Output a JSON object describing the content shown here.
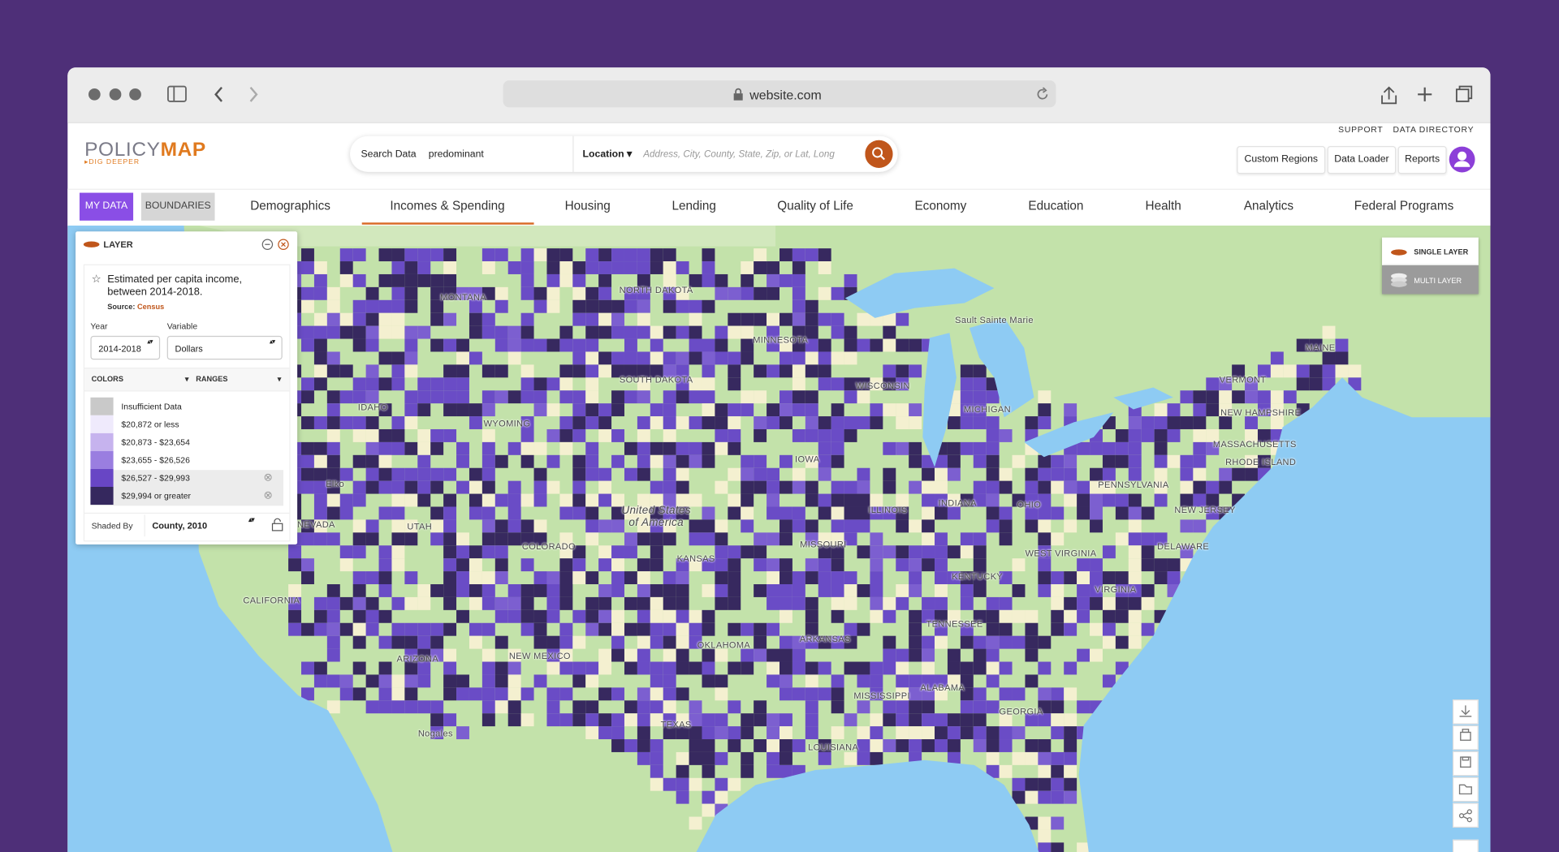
{
  "browser": {
    "url": "website.com"
  },
  "header": {
    "logo_part1": "POLICY",
    "logo_part2": "MAP",
    "tagline": "DIG DEEPER",
    "search_label": "Search Data",
    "search_value": "predominant",
    "location_label": "Location",
    "location_placeholder": "Address, City, County, State, Zip, or Lat, Long",
    "links": [
      "SUPPORT",
      "DATA DIRECTORY"
    ],
    "buttons": [
      "Custom Regions",
      "Data Loader",
      "Reports"
    ]
  },
  "nav": {
    "my_data": "MY DATA",
    "boundaries": "BOUNDARIES",
    "tabs": [
      "Demographics",
      "Incomes & Spending",
      "Housing",
      "Lending",
      "Quality of Life",
      "Economy",
      "Education",
      "Health",
      "Analytics",
      "Federal Programs"
    ]
  },
  "panel": {
    "title": "LAYER",
    "layer_name": "Estimated per capita income, between 2014-2018.",
    "source_label": "Source:",
    "source": "Census",
    "year_label": "Year",
    "year": "2014-2018",
    "variable_label": "Variable",
    "variable": "Dollars",
    "colors": "COLORS",
    "ranges": "RANGES",
    "legend": [
      {
        "label": "Insufficient Data",
        "color": "#c9c9c9"
      },
      {
        "label": "$20,872 or less",
        "color": "#efeafc"
      },
      {
        "label": "$20,873 - $23,654",
        "color": "#c6b3ee"
      },
      {
        "label": "$23,655 - $26,526",
        "color": "#9a7ee0"
      },
      {
        "label": "$26,527 - $29,993",
        "color": "#6846c5"
      },
      {
        "label": "$29,994 or greater",
        "color": "#35285e"
      }
    ],
    "shaded_by_label": "Shaded By",
    "shaded_by": "County, 2010"
  },
  "layer_toggle": [
    "SINGLE LAYER",
    "MULTI LAYER"
  ],
  "map_labels": [
    "MONTANA",
    "NORTH DAKOTA",
    "SOUTH DAKOTA",
    "MINNESOTA",
    "WISCONSIN",
    "MICHIGAN",
    "Sault Sainte Marie",
    "WYOMING",
    "IDAHO",
    "NEVADA",
    "UTAH",
    "COLORADO",
    "Elko",
    "United States of America",
    "IOWA",
    "KANSAS",
    "MISSOURI",
    "ILLINOIS",
    "INDIANA",
    "OHIO",
    "PENNSYLVANIA",
    "VERMONT",
    "MAINE",
    "NEW HAMPSHIRE",
    "MASSACHUSETTS",
    "RHODE ISLAND",
    "NEW JERSEY",
    "DELAWARE",
    "WEST VIRGINIA",
    "VIRGINIA",
    "KENTUCKY",
    "TENNESSEE",
    "CALIFORNIA",
    "ARIZONA",
    "NEW MEXICO",
    "OKLAHOMA",
    "ARKANSAS",
    "TEXAS",
    "MISSISSIPPI",
    "ALABAMA",
    "GEORGIA",
    "LOUISIANA",
    "Nogales"
  ]
}
